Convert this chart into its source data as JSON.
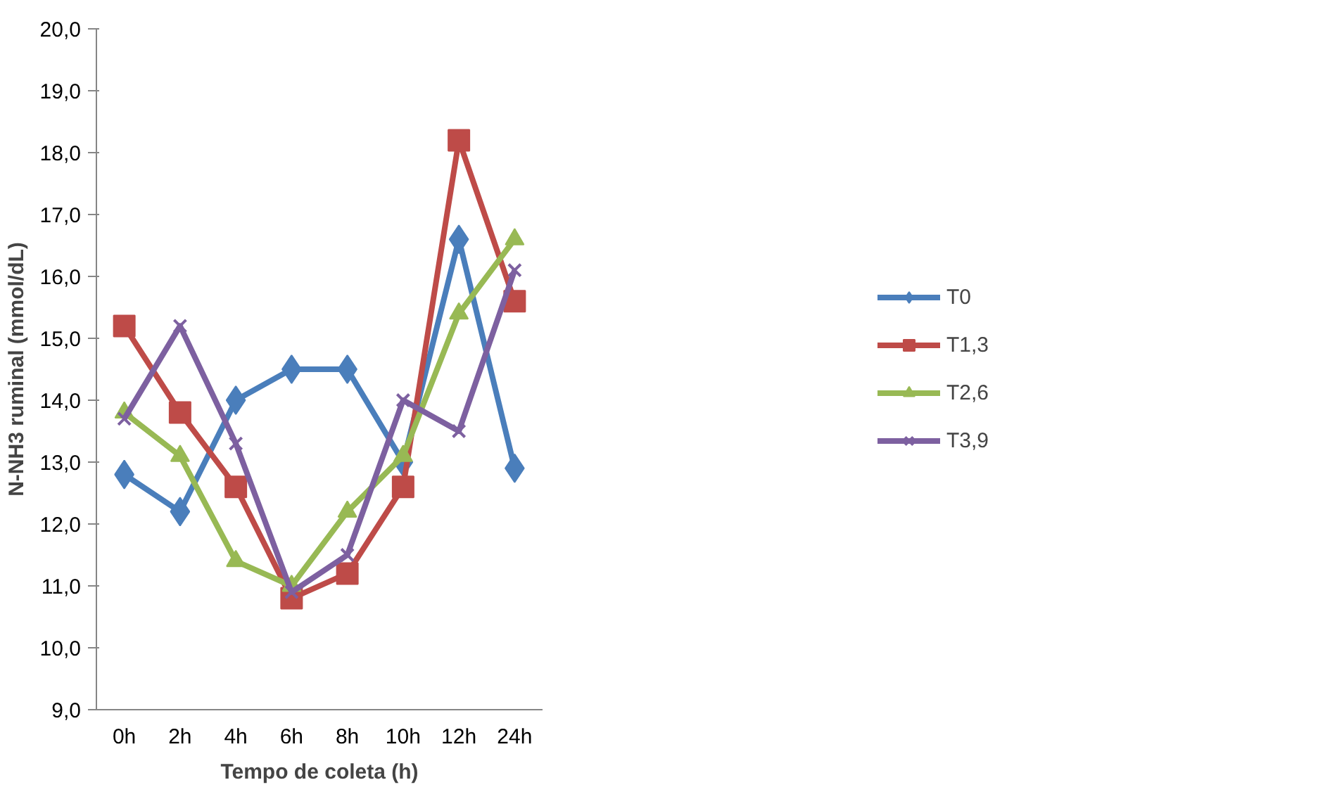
{
  "chart_data": {
    "type": "line",
    "xlabel": "Tempo de coleta (h)",
    "ylabel": "N-NH3 ruminal (mmol/dL)",
    "categories": [
      "0h",
      "2h",
      "4h",
      "6h",
      "8h",
      "10h",
      "12h",
      "24h"
    ],
    "series": [
      {
        "name": "T0",
        "color": "#4a7ebb",
        "marker": "diamond",
        "values": [
          12.8,
          12.2,
          14.0,
          14.5,
          14.5,
          13.0,
          16.6,
          12.9
        ]
      },
      {
        "name": "T1,3",
        "color": "#be4b48",
        "marker": "square",
        "values": [
          15.2,
          13.8,
          12.6,
          10.8,
          11.2,
          12.6,
          18.2,
          15.6
        ]
      },
      {
        "name": "T2,6",
        "color": "#98b954",
        "marker": "triangle",
        "values": [
          13.8,
          13.1,
          11.4,
          11.0,
          12.2,
          13.1,
          15.4,
          16.6
        ]
      },
      {
        "name": "T3,9",
        "color": "#7d60a0",
        "marker": "cross",
        "values": [
          13.7,
          15.2,
          13.3,
          10.9,
          11.5,
          14.0,
          13.5,
          16.1
        ]
      }
    ],
    "ylim": [
      9,
      20
    ],
    "yticks": [
      {
        "value": 9,
        "label": "9,0"
      },
      {
        "value": 10,
        "label": "10,0"
      },
      {
        "value": 11,
        "label": "11,0"
      },
      {
        "value": 12,
        "label": "12,0"
      },
      {
        "value": 13,
        "label": "13,0"
      },
      {
        "value": 14,
        "label": "14,0"
      },
      {
        "value": 15,
        "label": "15,0"
      },
      {
        "value": 16,
        "label": "16,0"
      },
      {
        "value": 17,
        "label": "17,0"
      },
      {
        "value": 18,
        "label": "18,0"
      },
      {
        "value": 19,
        "label": "19,0"
      },
      {
        "value": 20,
        "label": "20,0"
      }
    ],
    "grid": false,
    "legend": "right",
    "line_style": "solid"
  }
}
